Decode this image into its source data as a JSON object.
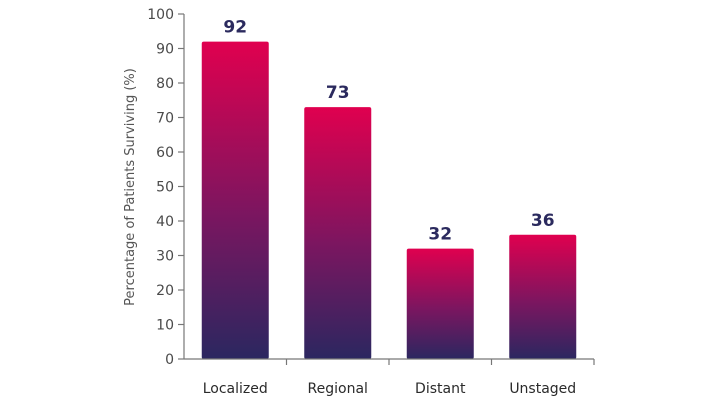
{
  "chart_data": {
    "type": "bar",
    "categories": [
      "Localized",
      "Regional",
      "Distant",
      "Unstaged"
    ],
    "values": [
      92,
      73,
      32,
      36
    ],
    "value_labels": [
      "92",
      "73",
      "32",
      "36"
    ],
    "title": "",
    "xlabel": "",
    "ylabel": "Percentage of Patients Surviving (%)",
    "ylim": [
      0,
      100
    ],
    "yticks": [
      0,
      10,
      20,
      30,
      40,
      50,
      60,
      70,
      80,
      90,
      100
    ],
    "grid": false,
    "legend": "none",
    "colors": {
      "bar_top": "#e0004f",
      "bar_mid": "#7a1660",
      "bar_bottom": "#2b2760",
      "value_label": "#2b2a5e",
      "axis": "#777777"
    }
  }
}
